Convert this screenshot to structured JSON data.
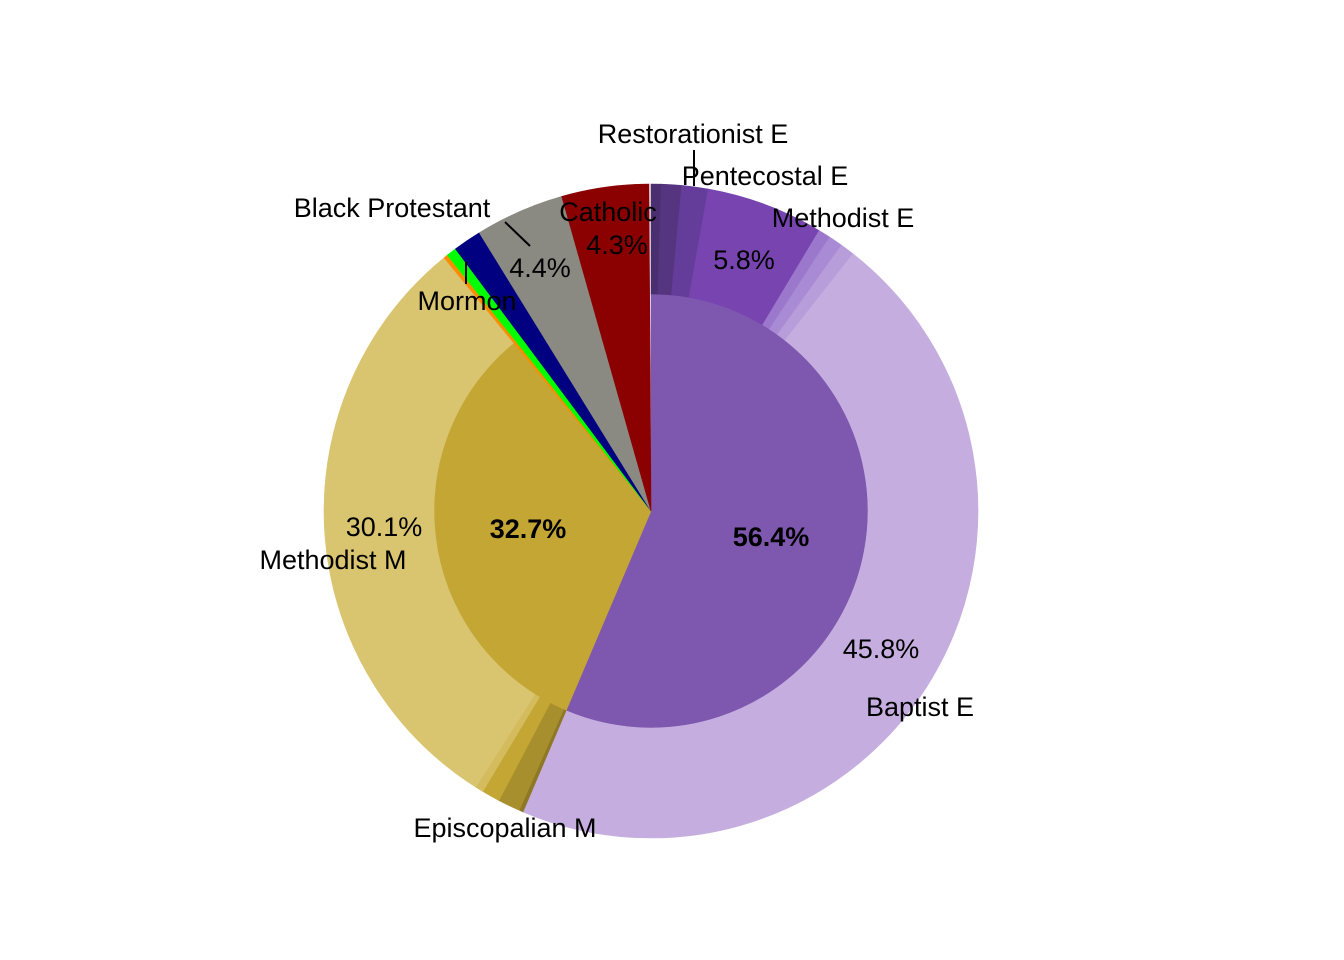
{
  "chart_data": {
    "type": "pie",
    "subtype": "sunburst",
    "title": "",
    "inner": [
      {
        "key": "evangelical",
        "value": 56.4,
        "label": "56.4%",
        "color": "#7E57AE",
        "children": [
          {
            "name": "",
            "value": 0.5,
            "color": "#4A2F70"
          },
          {
            "name": "Restorationist E",
            "value": 1.0,
            "color": "#55357F"
          },
          {
            "name": "Pentecostal E",
            "value": 1.3,
            "color": "#643C9A"
          },
          {
            "name": "Methodist E",
            "value": 5.8,
            "label": "5.8%",
            "color": "#7744B0"
          },
          {
            "name": "",
            "value": 0.6,
            "color": "#9B78CC"
          },
          {
            "name": "",
            "value": 0.7,
            "color": "#A98AD4"
          },
          {
            "name": "",
            "value": 0.7,
            "color": "#B79DDA"
          },
          {
            "name": "Baptist E",
            "value": 45.8,
            "label": "45.8%",
            "color": "#C5AEDF"
          }
        ]
      },
      {
        "key": "mainline",
        "value": 32.7,
        "label": "32.7%",
        "color": "#C4A634",
        "children": [
          {
            "name": "",
            "value": 0.2,
            "color": "#8E7826"
          },
          {
            "name": "Episcopalian M",
            "value": 1.1,
            "color": "#A88F2E"
          },
          {
            "name": "",
            "value": 0.9,
            "color": "#C4A634"
          },
          {
            "name": "",
            "value": 0.4,
            "color": "#D4BC5E"
          },
          {
            "name": "Methodist M",
            "value": 30.1,
            "label": "30.1%",
            "color": "#D9C470"
          }
        ]
      },
      {
        "name": "",
        "value": 0.2,
        "color": "#FF8C00"
      },
      {
        "name": "Mormon",
        "value": 0.5,
        "color": "#00FF00"
      },
      {
        "name": "",
        "value": 1.4,
        "color": "#000080"
      },
      {
        "name": "Black Protestant",
        "value": 4.4,
        "label": "4.4%",
        "color": "#8A8A82"
      },
      {
        "name": "Catholic",
        "value": 4.3,
        "label": "4.3%",
        "color": "#8B0000"
      }
    ]
  }
}
